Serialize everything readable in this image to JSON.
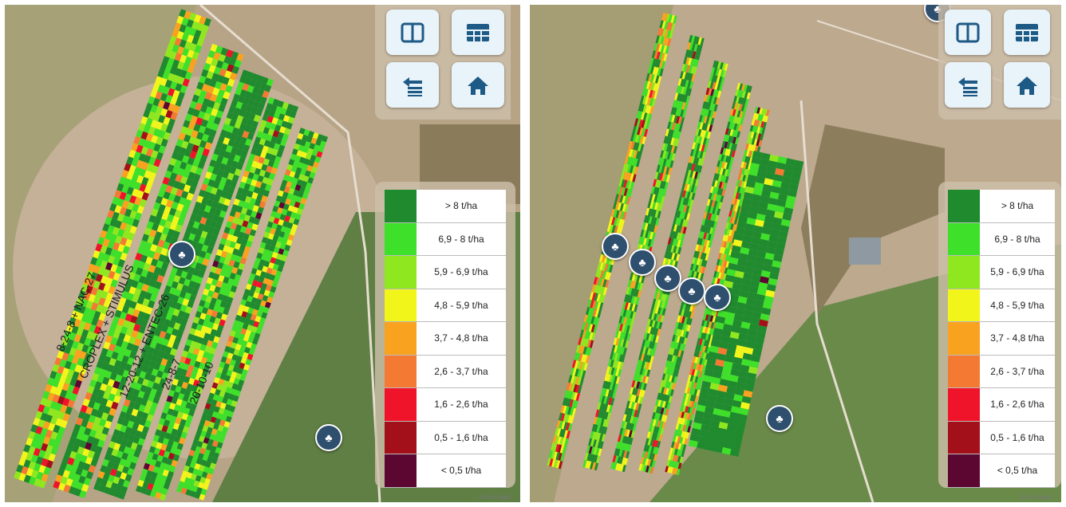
{
  "toolbar": {
    "buttons": [
      {
        "name": "split-view-icon"
      },
      {
        "name": "table-view-icon"
      },
      {
        "name": "layers-list-icon"
      },
      {
        "name": "home-icon"
      }
    ],
    "accent": "#1e5a86"
  },
  "legend": {
    "items": [
      {
        "label": "> 8 t/ha",
        "color": "#1f8a2e"
      },
      {
        "label": "6,9 - 8 t/ha",
        "color": "#3ee02a"
      },
      {
        "label": "5,9 - 6,9 t/ha",
        "color": "#8fe81f"
      },
      {
        "label": "4,8 - 5,9 t/ha",
        "color": "#f2f51a"
      },
      {
        "label": "3,7 - 4,8 t/ha",
        "color": "#f9a220"
      },
      {
        "label": "2,6 - 3,7 t/ha",
        "color": "#f47a34"
      },
      {
        "label": "1,6 - 2,6 t/ha",
        "color": "#f0142a"
      },
      {
        "label": "0,5 - 1,6 t/ha",
        "color": "#a4101a"
      },
      {
        "label": "< 0,5 t/ha",
        "color": "#5c0632"
      }
    ]
  },
  "left_map": {
    "strip_labels": [
      "8-24-8 + NAC-27",
      "CROPLEX + STIMULUS",
      "12-20-12 + ENTEC-26",
      "24-8-7",
      "20-10-10"
    ],
    "credit": "Arrow legal"
  },
  "right_map": {
    "credit": "Arrow legal"
  }
}
